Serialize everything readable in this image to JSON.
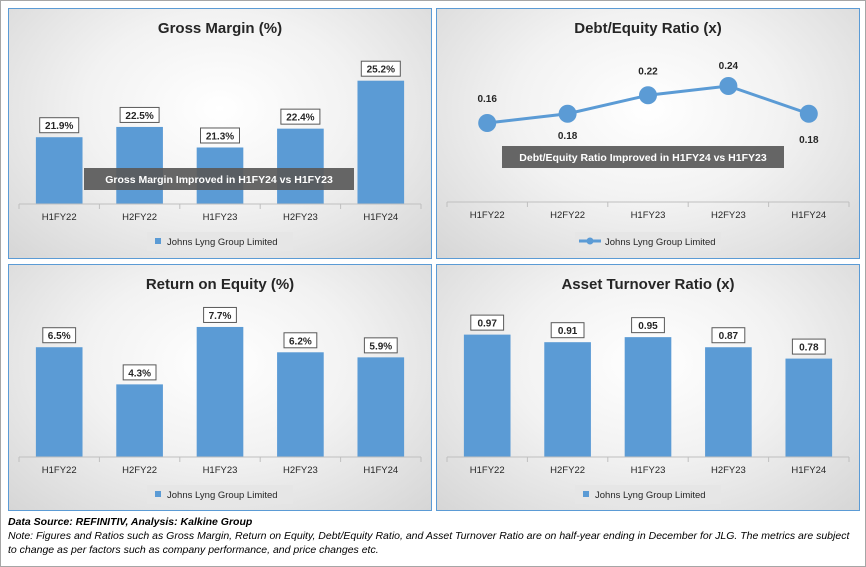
{
  "chart_data": [
    {
      "type": "bar",
      "title": "Gross Margin (%)",
      "categories": [
        "H1FY22",
        "H2FY22",
        "H1FY23",
        "H2FY23",
        "H1FY24"
      ],
      "series": [
        {
          "name": "Johns Lyng Group Limited",
          "values": [
            21.9,
            22.5,
            21.3,
            22.4,
            25.2
          ]
        }
      ],
      "value_labels": [
        "21.9%",
        "22.5%",
        "21.3%",
        "22.4%",
        "25.2%"
      ],
      "annotation": "Gross Margin Improved in H1FY24 vs H1FY23",
      "ylim": [
        18,
        26
      ],
      "legend_position": "bottom",
      "color": "#5b9bd5"
    },
    {
      "type": "line",
      "title": "Debt/Equity Ratio (x)",
      "categories": [
        "H1FY22",
        "H2FY22",
        "H1FY23",
        "H2FY23",
        "H1FY24"
      ],
      "series": [
        {
          "name": "Johns Lyng Group Limited",
          "values": [
            0.16,
            0.18,
            0.22,
            0.24,
            0.18
          ]
        }
      ],
      "value_labels": [
        "0.16",
        "0.18",
        "0.22",
        "0.24",
        "0.18"
      ],
      "annotation": "Debt/Equity Ratio Improved in H1FY24 vs H1FY23",
      "legend_position": "bottom",
      "color": "#5b9bd5"
    },
    {
      "type": "bar",
      "title": "Return on Equity (%)",
      "categories": [
        "H1FY22",
        "H2FY22",
        "H1FY23",
        "H2FY23",
        "H1FY24"
      ],
      "series": [
        {
          "name": "Johns Lyng Group Limited",
          "values": [
            6.5,
            4.3,
            7.7,
            6.2,
            5.9
          ]
        }
      ],
      "value_labels": [
        "6.5%",
        "4.3%",
        "7.7%",
        "6.2%",
        "5.9%"
      ],
      "ylim": [
        0,
        9
      ],
      "legend_position": "bottom",
      "color": "#5b9bd5"
    },
    {
      "type": "bar",
      "title": "Asset Turnover Ratio (x)",
      "categories": [
        "H1FY22",
        "H2FY22",
        "H1FY23",
        "H2FY23",
        "H1FY24"
      ],
      "series": [
        {
          "name": "Johns Lyng Group Limited",
          "values": [
            0.97,
            0.91,
            0.95,
            0.87,
            0.78
          ]
        }
      ],
      "value_labels": [
        "0.97",
        "0.91",
        "0.95",
        "0.87",
        "0.78"
      ],
      "ylim": [
        0,
        1.07
      ],
      "legend_position": "bottom",
      "color": "#5b9bd5"
    }
  ],
  "footer": {
    "source": "Data Source: REFINITIV, Analysis: Kalkine Group",
    "note": "Note: Figures and Ratios such as Gross Margin, Return on Equity, Debt/Equity Ratio, and Asset Turnover Ratio are on half-year ending in December for JLG. The metrics are subject to change as per factors such as company performance, and price changes etc."
  }
}
